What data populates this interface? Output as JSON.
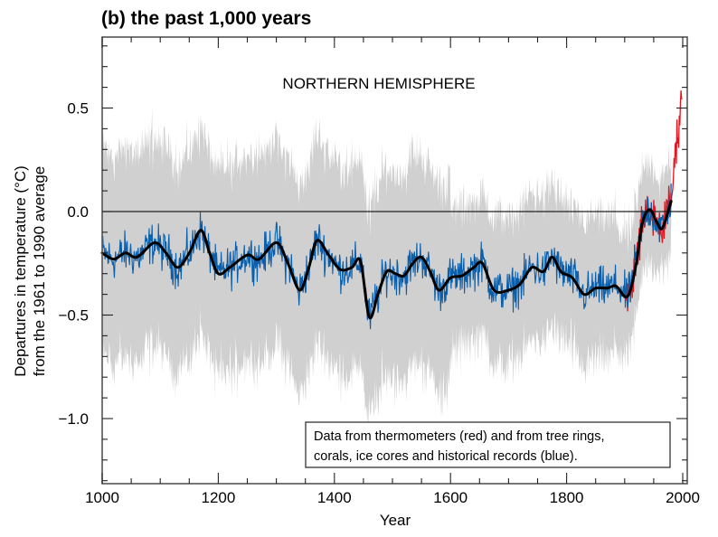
{
  "chart_data": {
    "type": "line",
    "title": "(b) the past 1,000 years",
    "annotation": "NORTHERN HEMISPHERE",
    "xlabel": "Year",
    "ylabel_lines": [
      "Departures in temperature (°C)",
      "from the 1961 to 1990 average"
    ],
    "xlim": [
      1000,
      2005
    ],
    "ylim": [
      -1.3,
      0.85
    ],
    "x_ticks": [
      1000,
      1200,
      1400,
      1600,
      1800,
      2000
    ],
    "x_tick_labels": [
      "1000",
      "1200",
      "1400",
      "1600",
      "1800",
      "2000"
    ],
    "x_minor_step": 50,
    "y_ticks": [
      0.5,
      0.0,
      -0.5,
      -1.0
    ],
    "y_tick_labels": [
      "0.5",
      "0.0",
      "−0.5",
      "−1.0"
    ],
    "y_minor_step": 0.1,
    "reference_line": 0.0,
    "legend": {
      "placement": "bottom-right",
      "lines": [
        "Data from thermometers (red) and from tree rings,",
        "corals, ice cores and historical records (blue)."
      ]
    },
    "colors": {
      "proxy": "#0a5fac",
      "thermometer": "#e2151e",
      "smoothed": "#000000",
      "uncertainty": "#d0d0d0"
    },
    "series": [
      {
        "name": "Smoothed reconstruction (50-year)",
        "x": [
          1000,
          1020,
          1040,
          1060,
          1090,
          1110,
          1130,
          1150,
          1170,
          1185,
          1200,
          1220,
          1250,
          1270,
          1300,
          1320,
          1340,
          1355,
          1370,
          1390,
          1410,
          1430,
          1445,
          1460,
          1475,
          1490,
          1505,
          1520,
          1535,
          1550,
          1565,
          1580,
          1600,
          1620,
          1640,
          1655,
          1675,
          1700,
          1720,
          1740,
          1760,
          1775,
          1790,
          1810,
          1830,
          1850,
          1870,
          1885,
          1905,
          1920,
          1930,
          1943,
          1955,
          1965,
          1980
        ],
        "y": [
          -0.2,
          -0.23,
          -0.2,
          -0.22,
          -0.15,
          -0.2,
          -0.27,
          -0.2,
          -0.09,
          -0.2,
          -0.3,
          -0.27,
          -0.21,
          -0.23,
          -0.15,
          -0.25,
          -0.38,
          -0.28,
          -0.14,
          -0.21,
          -0.28,
          -0.27,
          -0.24,
          -0.51,
          -0.4,
          -0.29,
          -0.3,
          -0.31,
          -0.25,
          -0.22,
          -0.29,
          -0.38,
          -0.32,
          -0.31,
          -0.27,
          -0.25,
          -0.38,
          -0.38,
          -0.35,
          -0.27,
          -0.29,
          -0.22,
          -0.29,
          -0.32,
          -0.4,
          -0.37,
          -0.37,
          -0.36,
          -0.41,
          -0.25,
          -0.06,
          0.01,
          -0.05,
          -0.08,
          0.05
        ]
      },
      {
        "name": "Proxy data (annual, blue)",
        "x_range": [
          1000,
          1980
        ],
        "note": "annual values scattered around smoothed curve, range approx -0.6 to +0.1"
      },
      {
        "name": "Thermometer data (annual, red)",
        "x_range": [
          1902,
          1999
        ],
        "approx_end_value": 0.68
      },
      {
        "name": "Uncertainty band (grey)",
        "x_range": [
          1000,
          1980
        ],
        "approx_halfwidth_pre1600": 0.5,
        "approx_halfwidth_post1600": 0.35
      }
    ]
  }
}
